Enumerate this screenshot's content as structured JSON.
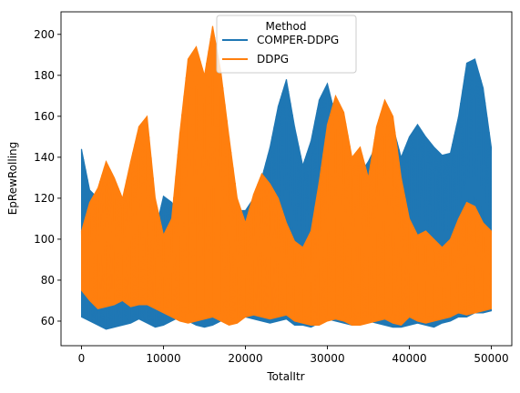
{
  "chart_data": {
    "type": "area",
    "xlabel": "TotalItr",
    "ylabel": "EpRewRolling",
    "xlim": [
      -2500,
      52500
    ],
    "ylim": [
      48,
      211
    ],
    "xticks": [
      0,
      10000,
      20000,
      30000,
      40000,
      50000
    ],
    "yticks": [
      60,
      80,
      100,
      120,
      140,
      160,
      180,
      200
    ],
    "grid": false,
    "legend": {
      "title": "Method",
      "placement": "top-center"
    },
    "series": [
      {
        "name": "COMPER-DDPG",
        "color": "#1f77b4",
        "x": [
          0,
          1000,
          2000,
          3000,
          4000,
          5000,
          6000,
          7000,
          8000,
          9000,
          10000,
          11000,
          12000,
          13000,
          14000,
          15000,
          16000,
          17000,
          18000,
          19000,
          20000,
          21000,
          22000,
          23000,
          24000,
          25000,
          26000,
          27000,
          28000,
          29000,
          30000,
          31000,
          32000,
          33000,
          34000,
          35000,
          36000,
          37000,
          38000,
          39000,
          40000,
          41000,
          42000,
          43000,
          44000,
          45000,
          46000,
          47000,
          48000,
          49000,
          50000
        ],
        "upper": [
          144,
          124,
          120,
          108,
          92,
          88,
          102,
          106,
          110,
          104,
          121,
          118,
          110,
          103,
          101,
          100,
          100,
          99,
          112,
          114,
          114,
          120,
          130,
          145,
          165,
          178,
          155,
          136,
          148,
          168,
          176,
          160,
          136,
          133,
          132,
          138,
          146,
          144,
          155,
          140,
          150,
          156,
          150,
          145,
          141,
          142,
          160,
          186,
          188,
          174,
          145
        ],
        "lower": [
          62,
          60,
          58,
          56,
          57,
          58,
          59,
          61,
          59,
          57,
          58,
          60,
          62,
          60,
          58,
          57,
          58,
          60,
          62,
          60,
          62,
          61,
          60,
          59,
          60,
          61,
          58,
          58,
          57,
          59,
          61,
          60,
          59,
          58,
          59,
          60,
          59,
          58,
          57,
          57,
          58,
          59,
          58,
          57,
          59,
          60,
          62,
          62,
          64,
          64,
          65
        ]
      },
      {
        "name": "DDPG",
        "color": "#ff7f0e",
        "x": [
          0,
          1000,
          2000,
          3000,
          4000,
          5000,
          6000,
          7000,
          8000,
          9000,
          10000,
          11000,
          12000,
          13000,
          14000,
          15000,
          16000,
          17000,
          18000,
          19000,
          20000,
          21000,
          22000,
          23000,
          24000,
          25000,
          26000,
          27000,
          28000,
          29000,
          30000,
          31000,
          32000,
          33000,
          34000,
          35000,
          36000,
          37000,
          38000,
          39000,
          40000,
          41000,
          42000,
          43000,
          44000,
          45000,
          46000,
          47000,
          48000,
          49000,
          50000
        ],
        "upper": [
          104,
          118,
          125,
          138,
          130,
          120,
          138,
          155,
          160,
          120,
          102,
          110,
          152,
          188,
          194,
          180,
          204,
          182,
          150,
          120,
          108,
          122,
          132,
          127,
          120,
          108,
          99,
          96,
          104,
          128,
          156,
          170,
          162,
          140,
          145,
          130,
          155,
          168,
          160,
          130,
          110,
          102,
          104,
          100,
          96,
          100,
          110,
          118,
          116,
          108,
          104
        ],
        "lower": [
          75,
          70,
          66,
          67,
          68,
          70,
          67,
          68,
          68,
          66,
          64,
          62,
          60,
          59,
          60,
          61,
          62,
          60,
          58,
          59,
          62,
          63,
          62,
          61,
          62,
          63,
          60,
          59,
          58,
          58,
          60,
          61,
          60,
          58,
          58,
          59,
          60,
          61,
          59,
          58,
          62,
          60,
          59,
          60,
          61,
          62,
          64,
          63,
          64,
          65,
          66
        ]
      }
    ]
  }
}
